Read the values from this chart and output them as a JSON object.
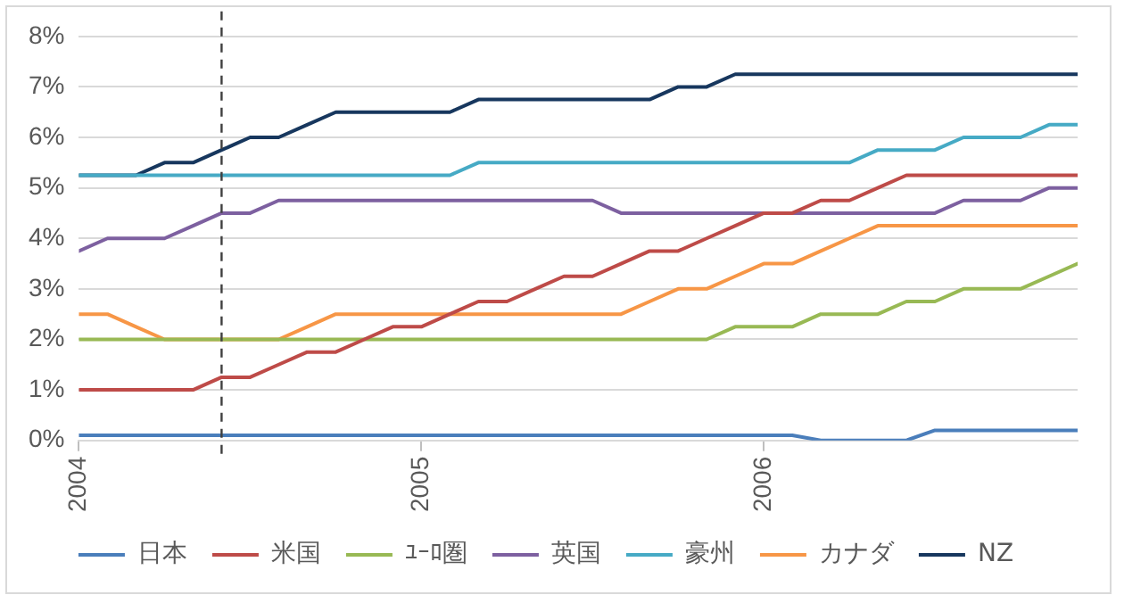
{
  "chart_data": {
    "type": "line",
    "x": [
      "2004-01",
      "2004-02",
      "2004-03",
      "2004-04",
      "2004-05",
      "2004-06",
      "2004-07",
      "2004-08",
      "2004-09",
      "2004-10",
      "2004-11",
      "2004-12",
      "2005-01",
      "2005-02",
      "2005-03",
      "2005-04",
      "2005-05",
      "2005-06",
      "2005-07",
      "2005-08",
      "2005-09",
      "2005-10",
      "2005-11",
      "2005-12",
      "2006-01",
      "2006-02",
      "2006-03",
      "2006-04",
      "2006-05",
      "2006-06",
      "2006-07",
      "2006-08",
      "2006-09",
      "2006-10",
      "2006-11",
      "2006-12"
    ],
    "xlim": [
      "2004-01",
      "2006-12"
    ],
    "xticks": [
      {
        "value": "2004-01",
        "label": "2004"
      },
      {
        "value": "2005-01",
        "label": "2005"
      },
      {
        "value": "2006-01",
        "label": "2006"
      }
    ],
    "ylim": [
      0,
      8
    ],
    "yticks": [
      {
        "value": 0,
        "label": "0%"
      },
      {
        "value": 1,
        "label": "1%"
      },
      {
        "value": 2,
        "label": "2%"
      },
      {
        "value": 3,
        "label": "3%"
      },
      {
        "value": 4,
        "label": "4%"
      },
      {
        "value": 5,
        "label": "5%"
      },
      {
        "value": 6,
        "label": "6%"
      },
      {
        "value": 7,
        "label": "7%"
      },
      {
        "value": 8,
        "label": "8%"
      }
    ],
    "grid": "y",
    "legend": "bottom",
    "marker": "none",
    "line_style": "solid",
    "ref_lines": [
      {
        "axis": "x",
        "value": "2004-06",
        "color": "#404040",
        "line_style": "dashed"
      }
    ],
    "series": [
      {
        "name": "日本",
        "color": "#4a7ebb",
        "values": [
          0.1,
          0.1,
          0.1,
          0.1,
          0.1,
          0.1,
          0.1,
          0.1,
          0.1,
          0.1,
          0.1,
          0.1,
          0.1,
          0.1,
          0.1,
          0.1,
          0.1,
          0.1,
          0.1,
          0.1,
          0.1,
          0.1,
          0.1,
          0.1,
          0.1,
          0.1,
          0,
          0,
          0,
          0,
          0.2,
          0.2,
          0.2,
          0.2,
          0.2,
          0.2
        ]
      },
      {
        "name": "米国",
        "color": "#be4b48",
        "values": [
          1,
          1,
          1,
          1,
          1,
          1.25,
          1.25,
          1.5,
          1.75,
          1.75,
          2,
          2.25,
          2.25,
          2.5,
          2.75,
          2.75,
          3,
          3.25,
          3.25,
          3.5,
          3.75,
          3.75,
          4,
          4.25,
          4.5,
          4.5,
          4.75,
          4.75,
          5,
          5.25,
          5.25,
          5.25,
          5.25,
          5.25,
          5.25,
          5.25
        ]
      },
      {
        "name": "ﾕｰﾛ圏",
        "color": "#98b954",
        "values": [
          2,
          2,
          2,
          2,
          2,
          2,
          2,
          2,
          2,
          2,
          2,
          2,
          2,
          2,
          2,
          2,
          2,
          2,
          2,
          2,
          2,
          2,
          2,
          2.25,
          2.25,
          2.25,
          2.5,
          2.5,
          2.5,
          2.75,
          2.75,
          3,
          3,
          3,
          3.25,
          3.5
        ]
      },
      {
        "name": "英国",
        "color": "#7d60a0",
        "values": [
          3.75,
          4,
          4,
          4,
          4.25,
          4.5,
          4.5,
          4.75,
          4.75,
          4.75,
          4.75,
          4.75,
          4.75,
          4.75,
          4.75,
          4.75,
          4.75,
          4.75,
          4.75,
          4.5,
          4.5,
          4.5,
          4.5,
          4.5,
          4.5,
          4.5,
          4.5,
          4.5,
          4.5,
          4.5,
          4.5,
          4.75,
          4.75,
          4.75,
          5,
          5
        ]
      },
      {
        "name": "豪州",
        "color": "#46aac5",
        "values": [
          5.25,
          5.25,
          5.25,
          5.25,
          5.25,
          5.25,
          5.25,
          5.25,
          5.25,
          5.25,
          5.25,
          5.25,
          5.25,
          5.25,
          5.5,
          5.5,
          5.5,
          5.5,
          5.5,
          5.5,
          5.5,
          5.5,
          5.5,
          5.5,
          5.5,
          5.5,
          5.5,
          5.5,
          5.75,
          5.75,
          5.75,
          6,
          6,
          6,
          6.25,
          6.25
        ]
      },
      {
        "name": "カナダ",
        "color": "#f79646",
        "values": [
          2.5,
          2.5,
          2.25,
          2,
          2,
          2,
          2,
          2,
          2.25,
          2.5,
          2.5,
          2.5,
          2.5,
          2.5,
          2.5,
          2.5,
          2.5,
          2.5,
          2.5,
          2.5,
          2.75,
          3,
          3,
          3.25,
          3.5,
          3.5,
          3.75,
          4,
          4.25,
          4.25,
          4.25,
          4.25,
          4.25,
          4.25,
          4.25,
          4.25
        ]
      },
      {
        "name": "NZ",
        "color": "#17375e",
        "values": [
          5.25,
          5.25,
          5.25,
          5.5,
          5.5,
          5.75,
          6,
          6,
          6.25,
          6.5,
          6.5,
          6.5,
          6.5,
          6.5,
          6.75,
          6.75,
          6.75,
          6.75,
          6.75,
          6.75,
          6.75,
          7,
          7,
          7.25,
          7.25,
          7.25,
          7.25,
          7.25,
          7.25,
          7.25,
          7.25,
          7.25,
          7.25,
          7.25,
          7.25,
          7.25
        ]
      }
    ]
  }
}
